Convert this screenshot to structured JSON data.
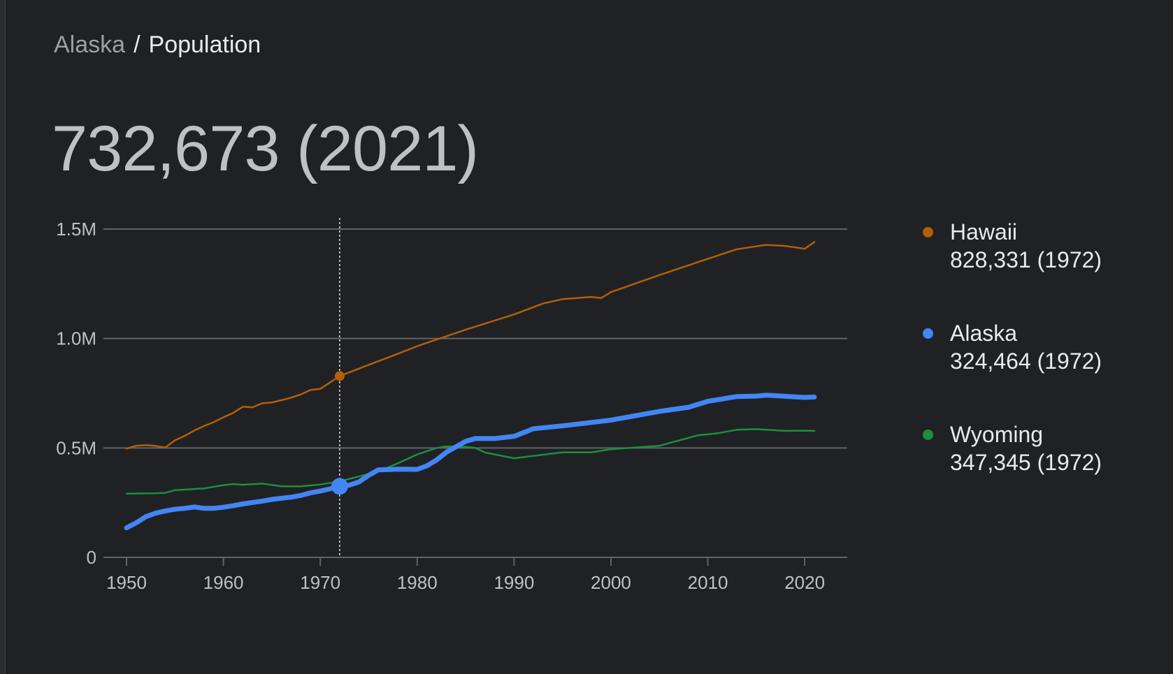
{
  "breadcrumb": {
    "parent": "Alaska",
    "separator": "/",
    "current": "Population"
  },
  "headline": "732,673 (2021)",
  "chart_data": {
    "type": "line",
    "xlim": [
      1950,
      2021
    ],
    "ylim": [
      0,
      1500000
    ],
    "x_ticks": [
      1950,
      1960,
      1970,
      1980,
      1990,
      2000,
      2010,
      2020
    ],
    "x_tick_labels": [
      "1950",
      "1960",
      "1970",
      "1980",
      "1990",
      "2000",
      "2010",
      "2020"
    ],
    "y_ticks": [
      0,
      500000,
      1000000,
      1500000
    ],
    "y_tick_labels": [
      "0",
      "0.5M",
      "1.0M",
      "1.5M"
    ],
    "grid": true,
    "legend_position": "right",
    "highlight_x": 1972,
    "series": [
      {
        "name": "Hawaii",
        "color": "#b45f06",
        "highlight_label": "828,331 (1972)",
        "values": [
          [
            1950,
            497000
          ],
          [
            1951,
            510000
          ],
          [
            1952,
            513000
          ],
          [
            1953,
            509000
          ],
          [
            1954,
            502000
          ],
          [
            1955,
            535000
          ],
          [
            1956,
            555000
          ],
          [
            1957,
            580000
          ],
          [
            1958,
            600000
          ],
          [
            1959,
            618000
          ],
          [
            1960,
            640000
          ],
          [
            1961,
            660000
          ],
          [
            1962,
            688000
          ],
          [
            1963,
            686000
          ],
          [
            1964,
            704000
          ],
          [
            1965,
            708000
          ],
          [
            1966,
            718000
          ],
          [
            1967,
            730000
          ],
          [
            1968,
            745000
          ],
          [
            1969,
            765000
          ],
          [
            1970,
            770000
          ],
          [
            1972,
            828331
          ],
          [
            1975,
            880000
          ],
          [
            1978,
            930000
          ],
          [
            1980,
            965000
          ],
          [
            1985,
            1040000
          ],
          [
            1990,
            1110000
          ],
          [
            1993,
            1160000
          ],
          [
            1995,
            1180000
          ],
          [
            1998,
            1190000
          ],
          [
            1999,
            1185000
          ],
          [
            2000,
            1212000
          ],
          [
            2005,
            1290000
          ],
          [
            2010,
            1364000
          ],
          [
            2013,
            1408000
          ],
          [
            2016,
            1428000
          ],
          [
            2018,
            1423000
          ],
          [
            2020,
            1410000
          ],
          [
            2021,
            1441000
          ]
        ]
      },
      {
        "name": "Alaska",
        "color": "#4285f4",
        "highlight_label": "324,464 (1972)",
        "values": [
          [
            1950,
            135000
          ],
          [
            1951,
            158000
          ],
          [
            1952,
            186000
          ],
          [
            1953,
            202000
          ],
          [
            1954,
            212000
          ],
          [
            1955,
            220000
          ],
          [
            1956,
            224000
          ],
          [
            1957,
            230000
          ],
          [
            1958,
            224000
          ],
          [
            1959,
            224000
          ],
          [
            1960,
            229000
          ],
          [
            1961,
            236000
          ],
          [
            1962,
            244000
          ],
          [
            1963,
            251000
          ],
          [
            1964,
            257000
          ],
          [
            1965,
            265000
          ],
          [
            1966,
            270000
          ],
          [
            1967,
            275000
          ],
          [
            1968,
            283000
          ],
          [
            1969,
            295000
          ],
          [
            1970,
            303000
          ],
          [
            1971,
            313000
          ],
          [
            1972,
            324464
          ],
          [
            1973,
            330000
          ],
          [
            1974,
            345000
          ],
          [
            1975,
            375000
          ],
          [
            1976,
            400000
          ],
          [
            1978,
            403000
          ],
          [
            1980,
            402000
          ],
          [
            1981,
            418000
          ],
          [
            1982,
            445000
          ],
          [
            1983,
            480000
          ],
          [
            1985,
            530000
          ],
          [
            1986,
            543000
          ],
          [
            1988,
            543000
          ],
          [
            1990,
            553000
          ],
          [
            1992,
            588000
          ],
          [
            1995,
            601000
          ],
          [
            2000,
            627000
          ],
          [
            2005,
            667000
          ],
          [
            2008,
            686000
          ],
          [
            2010,
            713000
          ],
          [
            2013,
            735000
          ],
          [
            2015,
            737000
          ],
          [
            2016,
            741000
          ],
          [
            2018,
            736000
          ],
          [
            2020,
            731000
          ],
          [
            2021,
            732673
          ]
        ]
      },
      {
        "name": "Wyoming",
        "color": "#1e8e3e",
        "highlight_label": "347,345 (1972)",
        "values": [
          [
            1950,
            291000
          ],
          [
            1953,
            293000
          ],
          [
            1954,
            295000
          ],
          [
            1955,
            307000
          ],
          [
            1958,
            315000
          ],
          [
            1960,
            330000
          ],
          [
            1961,
            335000
          ],
          [
            1962,
            332000
          ],
          [
            1964,
            337000
          ],
          [
            1966,
            325000
          ],
          [
            1968,
            325000
          ],
          [
            1970,
            333000
          ],
          [
            1972,
            347345
          ],
          [
            1974,
            370000
          ],
          [
            1976,
            392000
          ],
          [
            1978,
            430000
          ],
          [
            1980,
            470000
          ],
          [
            1982,
            500000
          ],
          [
            1983,
            507000
          ],
          [
            1985,
            505000
          ],
          [
            1986,
            500000
          ],
          [
            1987,
            479000
          ],
          [
            1990,
            453000
          ],
          [
            1995,
            480000
          ],
          [
            1998,
            480000
          ],
          [
            2000,
            494000
          ],
          [
            2005,
            510000
          ],
          [
            2009,
            558000
          ],
          [
            2011,
            567000
          ],
          [
            2013,
            583000
          ],
          [
            2015,
            586000
          ],
          [
            2018,
            578000
          ],
          [
            2020,
            579000
          ],
          [
            2021,
            578000
          ]
        ]
      }
    ]
  }
}
